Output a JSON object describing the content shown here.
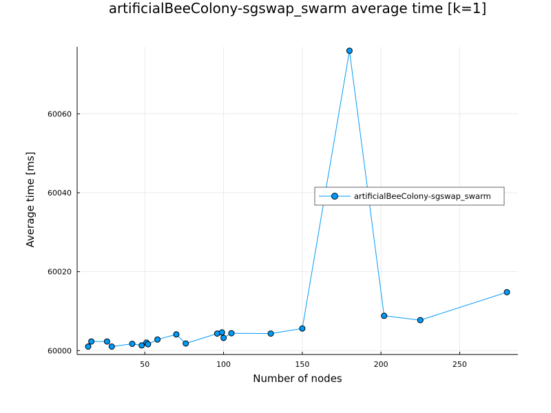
{
  "chart_data": {
    "type": "line",
    "title": "artificialBeeColony-sgswap_swarm average time [k=1]",
    "xlabel": "Number of nodes",
    "ylabel": "Average time [ms]",
    "xlim": [
      7,
      287
    ],
    "ylim": [
      59999,
      60077
    ],
    "xticks": [
      50,
      100,
      150,
      200,
      250
    ],
    "yticks": [
      60000,
      60020,
      60040,
      60060
    ],
    "grid": true,
    "legend_position": "right",
    "series": [
      {
        "name": "artificialBeeColony-sgswap_swarm",
        "color": "#009af9",
        "marker": "circle",
        "x": [
          14,
          16,
          26,
          29,
          42,
          48,
          51,
          52,
          58,
          70,
          76,
          96,
          99,
          100,
          105,
          130,
          150,
          180,
          202,
          225,
          280
        ],
        "y": [
          60001.0,
          60002.3,
          60002.3,
          60001.0,
          60001.7,
          60001.3,
          60002.0,
          60001.6,
          60002.8,
          60004.1,
          60001.8,
          60004.3,
          60004.6,
          60003.2,
          60004.4,
          60004.3,
          60005.6,
          60076.0,
          60008.8,
          60007.7,
          60014.8
        ]
      }
    ]
  }
}
